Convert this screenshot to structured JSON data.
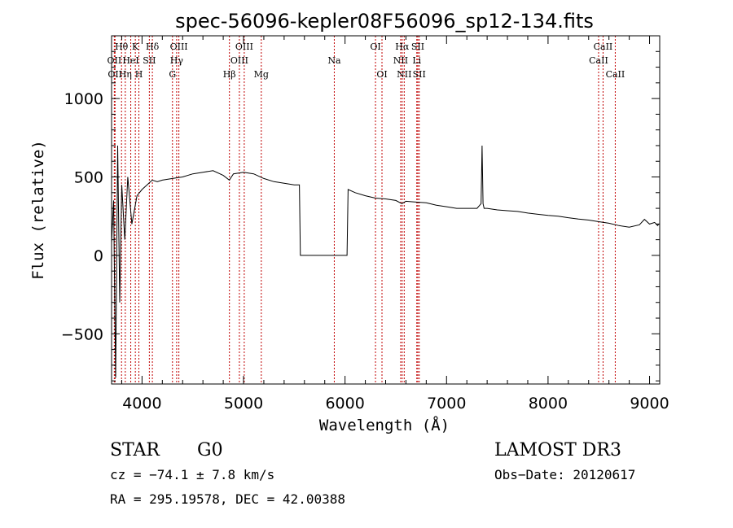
{
  "chart_data": {
    "type": "line",
    "title": "spec-56096-kepler08F56096_sp12-134.fits",
    "xlabel": "Wavelength (Å)",
    "ylabel": "Flux (relative)",
    "xlim": [
      3700,
      9100
    ],
    "ylim": [
      -820,
      1400
    ],
    "xticks": [
      4000,
      5000,
      6000,
      7000,
      8000,
      9000
    ],
    "yticks": [
      -500,
      0,
      500,
      1000
    ],
    "ytick_labels": [
      "−500",
      "0",
      "500",
      "1000"
    ],
    "series": [
      {
        "name": "flux",
        "x": [
          3700,
          3720,
          3740,
          3760,
          3780,
          3800,
          3830,
          3860,
          3900,
          3950,
          4000,
          4050,
          4100,
          4150,
          4200,
          4300,
          4400,
          4500,
          4600,
          4700,
          4800,
          4860,
          4900,
          5000,
          5100,
          5200,
          5300,
          5400,
          5500,
          5550,
          5560,
          5600,
          5800,
          6000,
          6020,
          6030,
          6100,
          6200,
          6300,
          6400,
          6500,
          6560,
          6600,
          6700,
          6800,
          6900,
          7000,
          7100,
          7200,
          7300,
          7340,
          7350,
          7360,
          7370,
          7400,
          7500,
          7600,
          7700,
          7800,
          7900,
          8000,
          8100,
          8200,
          8300,
          8400,
          8500,
          8600,
          8700,
          8800,
          8900,
          8950,
          9000,
          9050,
          9080,
          9090
        ],
        "y": [
          80,
          350,
          -780,
          700,
          -300,
          450,
          100,
          500,
          200,
          380,
          420,
          450,
          480,
          470,
          480,
          490,
          500,
          520,
          530,
          540,
          510,
          480,
          520,
          530,
          520,
          490,
          470,
          460,
          450,
          450,
          0,
          0,
          0,
          0,
          0,
          420,
          400,
          380,
          365,
          360,
          350,
          330,
          345,
          340,
          335,
          320,
          310,
          300,
          300,
          300,
          330,
          700,
          330,
          300,
          300,
          290,
          285,
          280,
          270,
          262,
          255,
          250,
          240,
          232,
          225,
          215,
          205,
          190,
          180,
          195,
          230,
          200,
          210,
          190,
          200
        ]
      }
    ],
    "lines": [
      {
        "wl": 3727,
        "label": "OII",
        "row": 1
      },
      {
        "wl": 3734,
        "label": "OII",
        "row": 2
      },
      {
        "wl": 3798,
        "label": "Hθ",
        "row": 0
      },
      {
        "wl": 3835,
        "label": "Hη",
        "row": 2
      },
      {
        "wl": 3889,
        "label": "HeI",
        "row": 1
      },
      {
        "wl": 3934,
        "label": "K",
        "row": 0
      },
      {
        "wl": 3969,
        "label": "H",
        "row": 2
      },
      {
        "wl": 4072,
        "label": "SII",
        "row": 1
      },
      {
        "wl": 4102,
        "label": "Hδ",
        "row": 0
      },
      {
        "wl": 4300,
        "label": "G",
        "row": 2
      },
      {
        "wl": 4341,
        "label": "Hγ",
        "row": 1
      },
      {
        "wl": 4363,
        "label": "OIII",
        "row": 0
      },
      {
        "wl": 4861,
        "label": "Hβ",
        "row": 2
      },
      {
        "wl": 4959,
        "label": "OIII",
        "row": 1
      },
      {
        "wl": 5007,
        "label": "OIII",
        "row": 0
      },
      {
        "wl": 5175,
        "label": "Mg",
        "row": 2
      },
      {
        "wl": 5894,
        "label": "Na",
        "row": 1
      },
      {
        "wl": 6300,
        "label": "OI",
        "row": 0
      },
      {
        "wl": 6364,
        "label": "OI",
        "row": 2
      },
      {
        "wl": 6548,
        "label": "NII",
        "row": 1
      },
      {
        "wl": 6563,
        "label": "Hα",
        "row": 0
      },
      {
        "wl": 6583,
        "label": "NII",
        "row": 2
      },
      {
        "wl": 6707,
        "label": "Li",
        "row": 1
      },
      {
        "wl": 6717,
        "label": "SII",
        "row": 0
      },
      {
        "wl": 6731,
        "label": "SII",
        "row": 2
      },
      {
        "wl": 8498,
        "label": "CaII",
        "row": 1
      },
      {
        "wl": 8542,
        "label": "CaII",
        "row": 0
      },
      {
        "wl": 8662,
        "label": "CaII",
        "row": 2
      }
    ]
  },
  "info": {
    "class": "STAR",
    "subclass": "G0",
    "survey": "LAMOST DR3",
    "cz": "cz = −74.1 ± 7.8 km/s",
    "obs_date": "Obs−Date: 20120617",
    "coords": "RA = 295.19578, DEC =  42.00388"
  }
}
